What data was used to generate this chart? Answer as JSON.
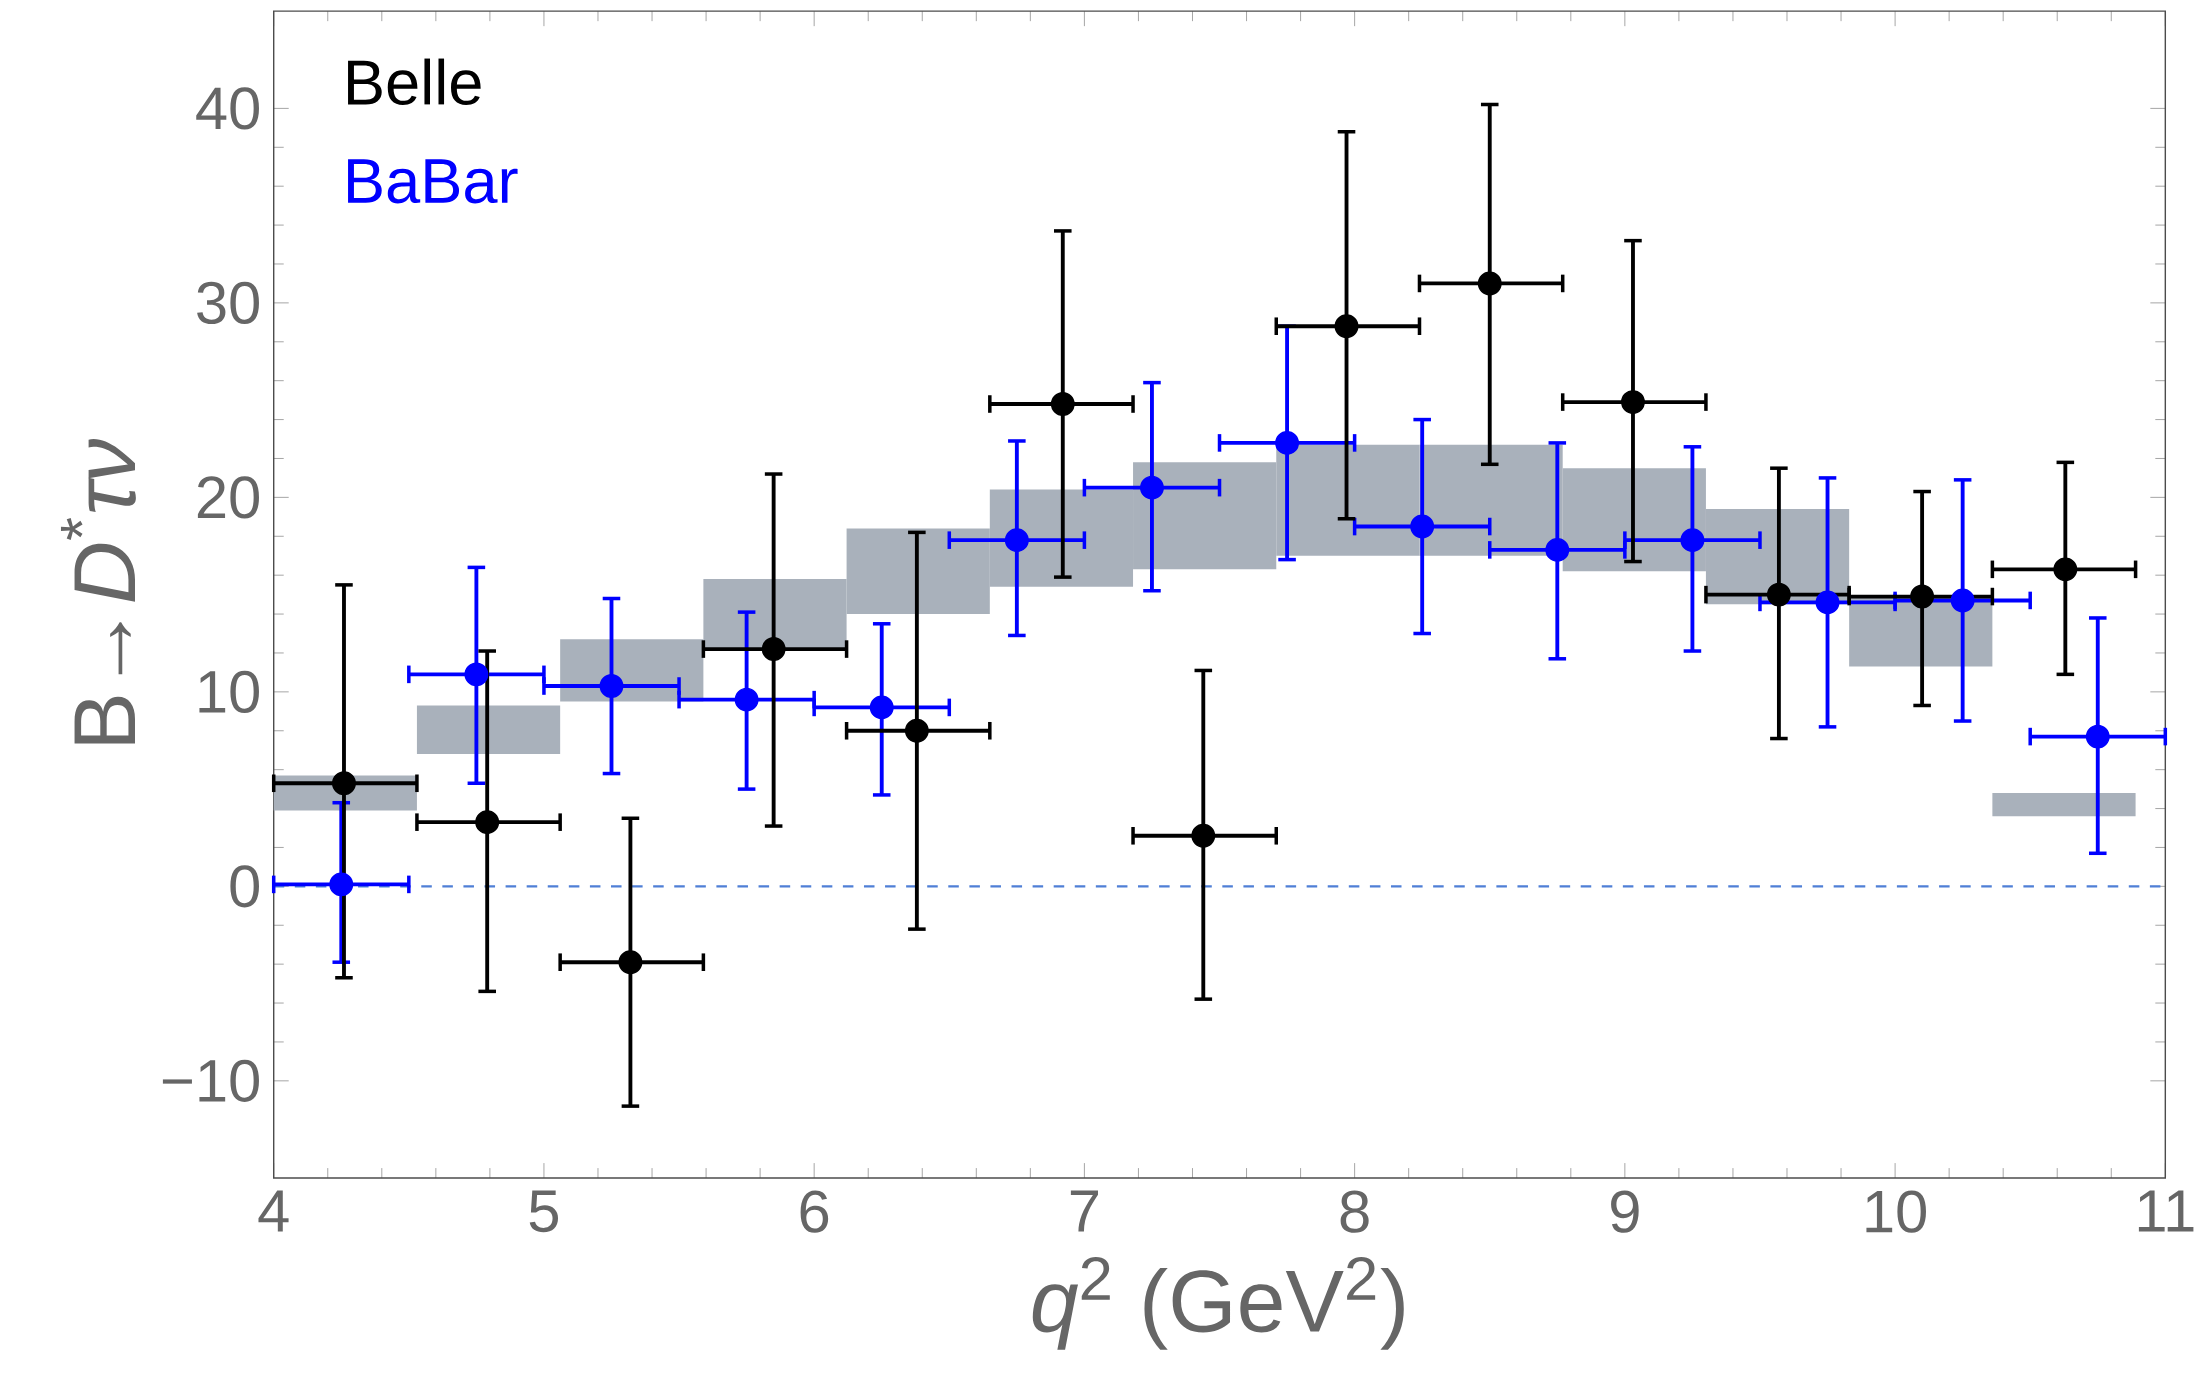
{
  "chart_data": {
    "type": "scatter",
    "xlabel": "*q*$^{2}$ (GeV$^{2}$)",
    "ylabel": "B→*D*$^{*}$*τν*",
    "xlim": [
      4,
      11
    ],
    "ylim": [
      -15,
      45
    ],
    "xticks": [
      4,
      5,
      6,
      7,
      8,
      9,
      10,
      11
    ],
    "yticks": [
      {
        "value": -10,
        "label": "−10"
      },
      0,
      10,
      20,
      30,
      40
    ],
    "grid": false,
    "legend": "top left",
    "marker": "circle",
    "ref_lines": [
      {
        "axis": "y",
        "value": 0,
        "color": "#4f7fd6",
        "line_style": "dashed"
      }
    ],
    "series": [
      {
        "type": "bar",
        "color": "#a9b1bb",
        "x": [
          4.265,
          4.795,
          5.325,
          5.855,
          6.385,
          6.915,
          7.445,
          7.975,
          8.505,
          9.035,
          9.565,
          10.095,
          10.625
        ],
        "base": [
          3.9,
          6.8,
          9.5,
          12.2,
          14.0,
          15.4,
          16.3,
          17.0,
          17.0,
          16.2,
          14.5,
          11.3,
          3.6
        ],
        "values": [
          1.8,
          2.5,
          3.2,
          3.6,
          4.4,
          5.0,
          5.5,
          5.7,
          5.7,
          5.3,
          4.9,
          3.6,
          1.2
        ]
      },
      {
        "name": "Belle",
        "color": "#000000",
        "x": [
          4.26,
          4.79,
          5.32,
          5.85,
          6.38,
          6.92,
          7.44,
          7.97,
          8.5,
          9.03,
          9.57,
          10.1,
          10.63
        ],
        "values": [
          5.3,
          3.3,
          -3.9,
          12.2,
          8.0,
          24.8,
          2.6,
          28.8,
          31.0,
          24.9,
          15.0,
          14.9,
          16.3
        ],
        "errors": [
          [
            -4.7,
            15.5
          ],
          [
            -5.4,
            12.1
          ],
          [
            -11.3,
            3.5
          ],
          [
            3.1,
            21.2
          ],
          [
            -2.2,
            18.2
          ],
          [
            15.9,
            33.7
          ],
          [
            -5.8,
            11.1
          ],
          [
            18.9,
            38.8
          ],
          [
            21.7,
            40.2
          ],
          [
            16.7,
            33.2
          ],
          [
            7.6,
            21.5
          ],
          [
            9.3,
            20.3
          ],
          [
            10.9,
            21.8
          ]
        ],
        "xerrors": [
          [
            4.0,
            4.53
          ],
          [
            4.53,
            5.06
          ],
          [
            5.06,
            5.59
          ],
          [
            5.59,
            6.12
          ],
          [
            6.12,
            6.65
          ],
          [
            6.65,
            7.18
          ],
          [
            7.18,
            7.71
          ],
          [
            7.71,
            8.24
          ],
          [
            8.24,
            8.77
          ],
          [
            8.77,
            9.3
          ],
          [
            9.3,
            9.83
          ],
          [
            9.83,
            10.36
          ],
          [
            10.36,
            10.89
          ]
        ]
      },
      {
        "name": "BaBar",
        "color": "#0000ff",
        "x": [
          4.25,
          4.75,
          5.25,
          5.75,
          6.25,
          6.75,
          7.25,
          7.75,
          8.25,
          8.75,
          9.25,
          9.75,
          10.25,
          10.75
        ],
        "values": [
          0.1,
          10.9,
          10.3,
          9.6,
          9.2,
          17.8,
          20.5,
          22.8,
          18.5,
          17.3,
          17.8,
          14.6,
          14.7,
          7.7
        ],
        "errors": [
          [
            -3.9,
            4.3
          ],
          [
            5.3,
            16.4
          ],
          [
            5.8,
            14.8
          ],
          [
            5.0,
            14.1
          ],
          [
            4.7,
            13.5
          ],
          [
            12.9,
            22.9
          ],
          [
            15.2,
            25.9
          ],
          [
            16.8,
            28.8
          ],
          [
            13.0,
            24.0
          ],
          [
            11.7,
            22.8
          ],
          [
            12.1,
            22.6
          ],
          [
            8.2,
            21.0
          ],
          [
            8.5,
            20.9
          ],
          [
            1.7,
            13.8
          ]
        ],
        "xerrors": [
          [
            4.0,
            4.5
          ],
          [
            4.5,
            5.0
          ],
          [
            5.0,
            5.5
          ],
          [
            5.5,
            6.0
          ],
          [
            6.0,
            6.5
          ],
          [
            6.5,
            7.0
          ],
          [
            7.0,
            7.5
          ],
          [
            7.5,
            8.0
          ],
          [
            8.0,
            8.5
          ],
          [
            8.5,
            9.0
          ],
          [
            9.0,
            9.5
          ],
          [
            9.5,
            10.0
          ],
          [
            10.0,
            10.5
          ],
          [
            10.5,
            11.0
          ]
        ]
      }
    ]
  }
}
